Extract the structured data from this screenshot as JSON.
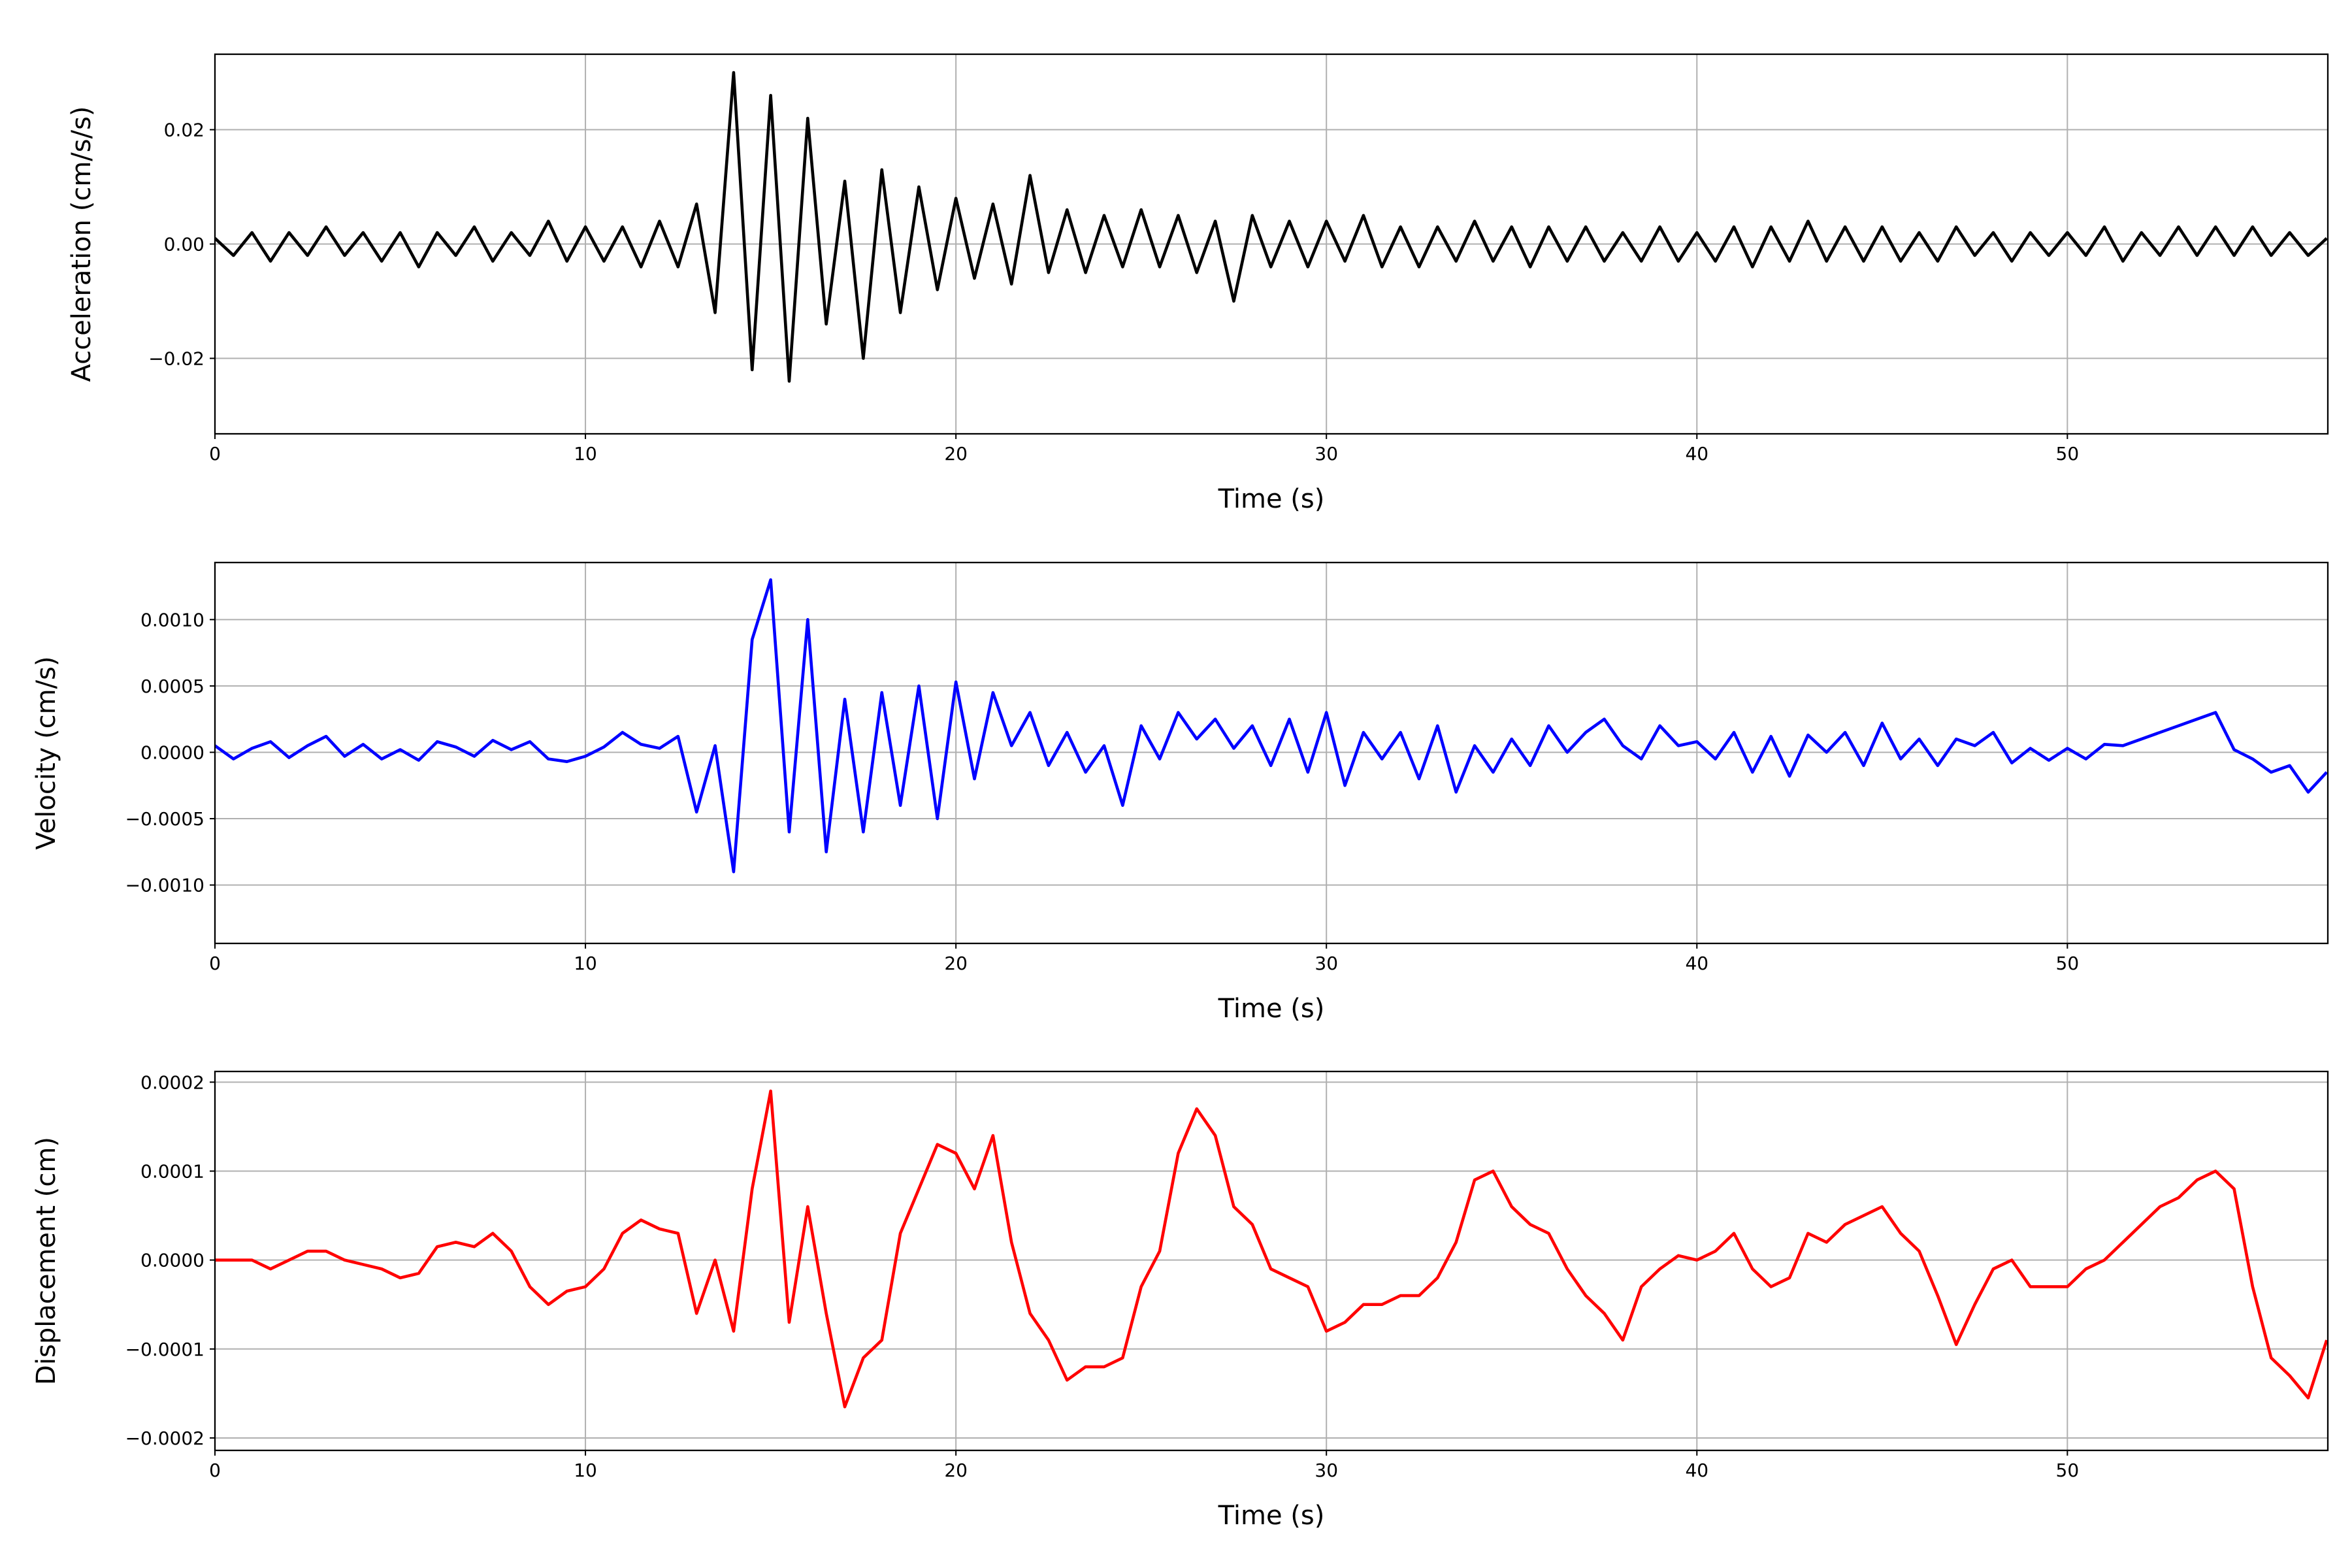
{
  "chart_data": [
    {
      "type": "line",
      "xlabel": "Time (s)",
      "ylabel": "Acceleration (cm/s/s)",
      "color": "#000000",
      "grid": true,
      "xlim": [
        0,
        57.03
      ],
      "xticks": [
        0,
        10,
        20,
        30,
        40,
        50
      ],
      "ylim": [
        -0.0332,
        0.0332
      ],
      "yticks": [
        {
          "value": -0.02,
          "label": "−0.02"
        },
        {
          "value": 0,
          "label": "0.00"
        },
        {
          "value": 0.02,
          "label": "0.02"
        }
      ],
      "x": [
        0,
        0.5,
        1,
        1.5,
        2,
        2.5,
        3,
        3.5,
        4,
        4.5,
        5,
        5.5,
        6,
        6.5,
        7,
        7.5,
        8,
        8.5,
        9,
        9.5,
        10,
        10.5,
        11,
        11.5,
        12,
        12.5,
        13,
        13.5,
        14,
        14.5,
        15,
        15.5,
        16,
        16.5,
        17,
        17.5,
        18,
        18.5,
        19,
        19.5,
        20,
        20.5,
        21,
        21.5,
        22,
        22.5,
        23,
        23.5,
        24,
        24.5,
        25,
        25.5,
        26,
        26.5,
        27,
        27.5,
        28,
        28.5,
        29,
        29.5,
        30,
        30.5,
        31,
        31.5,
        32,
        32.5,
        33,
        33.5,
        34,
        34.5,
        35,
        35.5,
        36,
        36.5,
        37,
        37.5,
        38,
        38.5,
        39,
        39.5,
        40,
        40.5,
        41,
        41.5,
        42,
        42.5,
        43,
        43.5,
        44,
        44.5,
        45,
        45.5,
        46,
        46.5,
        47,
        47.5,
        48,
        48.5,
        49,
        49.5,
        50,
        50.5,
        51,
        51.5,
        52,
        52.5,
        53,
        53.5,
        54,
        54.5,
        55,
        55.5,
        56,
        56.5,
        57
      ],
      "values": [
        0.001,
        -0.002,
        0.002,
        -0.003,
        0.002,
        -0.002,
        0.003,
        -0.002,
        0.002,
        -0.003,
        0.002,
        -0.004,
        0.002,
        -0.002,
        0.003,
        -0.003,
        0.002,
        -0.002,
        0.004,
        -0.003,
        0.003,
        -0.003,
        0.003,
        -0.004,
        0.004,
        -0.004,
        0.007,
        -0.012,
        0.03,
        -0.022,
        0.026,
        -0.024,
        0.022,
        -0.014,
        0.011,
        -0.02,
        0.013,
        -0.012,
        0.01,
        -0.008,
        0.008,
        -0.006,
        0.007,
        -0.007,
        0.012,
        -0.005,
        0.006,
        -0.005,
        0.005,
        -0.004,
        0.006,
        -0.004,
        0.005,
        -0.005,
        0.004,
        -0.01,
        0.005,
        -0.004,
        0.004,
        -0.004,
        0.004,
        -0.003,
        0.005,
        -0.004,
        0.003,
        -0.004,
        0.003,
        -0.003,
        0.004,
        -0.003,
        0.003,
        -0.004,
        0.003,
        -0.003,
        0.003,
        -0.003,
        0.002,
        -0.003,
        0.003,
        -0.003,
        0.002,
        -0.003,
        0.003,
        -0.004,
        0.003,
        -0.003,
        0.004,
        -0.003,
        0.003,
        -0.003,
        0.003,
        -0.003,
        0.002,
        -0.003,
        0.003,
        -0.002,
        0.002,
        -0.003,
        0.002,
        -0.002,
        0.002,
        -0.002,
        0.003,
        -0.003,
        0.002,
        -0.002,
        0.003,
        -0.002,
        0.003,
        -0.002,
        0.003,
        -0.002,
        0.002,
        -0.002,
        0.001
      ]
    },
    {
      "type": "line",
      "xlabel": "Time (s)",
      "ylabel": "Velocity (cm/s)",
      "color": "#0000ff",
      "grid": true,
      "xlim": [
        0,
        57.03
      ],
      "xticks": [
        0,
        10,
        20,
        30,
        40,
        50
      ],
      "ylim": [
        -0.00144,
        0.00143
      ],
      "yticks": [
        {
          "value": -0.001,
          "label": "−0.0010"
        },
        {
          "value": -0.0005,
          "label": "−0.0005"
        },
        {
          "value": 0,
          "label": "0.0000"
        },
        {
          "value": 0.0005,
          "label": "0.0005"
        },
        {
          "value": 0.001,
          "label": "0.0010"
        }
      ],
      "x": [
        0,
        0.5,
        1,
        1.5,
        2,
        2.5,
        3,
        3.5,
        4,
        4.5,
        5,
        5.5,
        6,
        6.5,
        7,
        7.5,
        8,
        8.5,
        9,
        9.5,
        10,
        10.5,
        11,
        11.5,
        12,
        12.5,
        13,
        13.5,
        14,
        14.5,
        15,
        15.5,
        16,
        16.5,
        17,
        17.5,
        18,
        18.5,
        19,
        19.5,
        20,
        20.5,
        21,
        21.5,
        22,
        22.5,
        23,
        23.5,
        24,
        24.5,
        25,
        25.5,
        26,
        26.5,
        27,
        27.5,
        28,
        28.5,
        29,
        29.5,
        30,
        30.5,
        31,
        31.5,
        32,
        32.5,
        33,
        33.5,
        34,
        34.5,
        35,
        35.5,
        36,
        36.5,
        37,
        37.5,
        38,
        38.5,
        39,
        39.5,
        40,
        40.5,
        41,
        41.5,
        42,
        42.5,
        43,
        43.5,
        44,
        44.5,
        45,
        45.5,
        46,
        46.5,
        47,
        47.5,
        48,
        48.5,
        49,
        49.5,
        50,
        50.5,
        51,
        51.5,
        52,
        52.5,
        53,
        53.5,
        54,
        54.5,
        55,
        55.5,
        56,
        56.5,
        57
      ],
      "values": [
        5e-05,
        -5e-05,
        3e-05,
        8e-05,
        -4e-05,
        5e-05,
        0.00012,
        -3e-05,
        6e-05,
        -5e-05,
        2e-05,
        -6e-05,
        8e-05,
        4e-05,
        -3e-05,
        9e-05,
        2e-05,
        8e-05,
        -5e-05,
        -7e-05,
        -3e-05,
        4e-05,
        0.00015,
        6e-05,
        3e-05,
        0.00012,
        -0.00045,
        5e-05,
        -0.0009,
        0.00085,
        0.0013,
        -0.0006,
        0.001,
        -0.00075,
        0.0004,
        -0.0006,
        0.00045,
        -0.0004,
        0.0005,
        -0.0005,
        0.00053,
        -0.0002,
        0.00045,
        5e-05,
        0.0003,
        -0.0001,
        0.00015,
        -0.00015,
        5e-05,
        -0.0004,
        0.0002,
        -5e-05,
        0.0003,
        0.0001,
        0.00025,
        3e-05,
        0.0002,
        -0.0001,
        0.00025,
        -0.00015,
        0.0003,
        -0.00025,
        0.00015,
        -5e-05,
        0.00015,
        -0.0002,
        0.0002,
        -0.0003,
        5e-05,
        -0.00015,
        0.0001,
        -0.0001,
        0.0002,
        0,
        0.00015,
        0.00025,
        5e-05,
        -5e-05,
        0.0002,
        5e-05,
        8e-05,
        -5e-05,
        0.00015,
        -0.00015,
        0.00012,
        -0.00018,
        0.00013,
        0,
        0.00015,
        -0.0001,
        0.00022,
        -5e-05,
        0.0001,
        -0.0001,
        0.0001,
        5e-05,
        0.00015,
        -8e-05,
        3e-05,
        -6e-05,
        3e-05,
        -5e-05,
        6e-05,
        5e-05,
        0.0001,
        0.00015,
        0.0002,
        0.00025,
        0.0003,
        2e-05,
        -5e-05,
        -0.00015,
        -0.0001,
        -0.0003,
        -0.00015
      ]
    },
    {
      "type": "line",
      "xlabel": "Time (s)",
      "ylabel": "Displacement (cm)",
      "color": "#ff0000",
      "grid": true,
      "xlim": [
        0,
        57.03
      ],
      "xticks": [
        0,
        10,
        20,
        30,
        40,
        50
      ],
      "ylim": [
        -0.000214,
        0.000212
      ],
      "yticks": [
        {
          "value": -0.0002,
          "label": "−0.0002"
        },
        {
          "value": -0.0001,
          "label": "−0.0001"
        },
        {
          "value": 0,
          "label": "0.0000"
        },
        {
          "value": 0.0001,
          "label": "0.0001"
        },
        {
          "value": 0.0002,
          "label": "0.0002"
        }
      ],
      "x": [
        0,
        0.5,
        1,
        1.5,
        2,
        2.5,
        3,
        3.5,
        4,
        4.5,
        5,
        5.5,
        6,
        6.5,
        7,
        7.5,
        8,
        8.5,
        9,
        9.5,
        10,
        10.5,
        11,
        11.5,
        12,
        12.5,
        13,
        13.5,
        14,
        14.5,
        15,
        15.5,
        16,
        16.5,
        17,
        17.5,
        18,
        18.5,
        19,
        19.5,
        20,
        20.5,
        21,
        21.5,
        22,
        22.5,
        23,
        23.5,
        24,
        24.5,
        25,
        25.5,
        26,
        26.5,
        27,
        27.5,
        28,
        28.5,
        29,
        29.5,
        30,
        30.5,
        31,
        31.5,
        32,
        32.5,
        33,
        33.5,
        34,
        34.5,
        35,
        35.5,
        36,
        36.5,
        37,
        37.5,
        38,
        38.5,
        39,
        39.5,
        40,
        40.5,
        41,
        41.5,
        42,
        42.5,
        43,
        43.5,
        44,
        44.5,
        45,
        45.5,
        46,
        46.5,
        47,
        47.5,
        48,
        48.5,
        49,
        49.5,
        50,
        50.5,
        51,
        51.5,
        52,
        52.5,
        53,
        53.5,
        54,
        54.5,
        55,
        55.5,
        56,
        56.5,
        57
      ],
      "values": [
        0,
        0,
        0,
        -1e-05,
        0,
        1e-05,
        1e-05,
        0,
        -5e-06,
        -1e-05,
        -2e-05,
        -1.5e-05,
        1.5e-05,
        2e-05,
        1.5e-05,
        3e-05,
        1e-05,
        -3e-05,
        -5e-05,
        -3.5e-05,
        -3e-05,
        -1e-05,
        3e-05,
        4.5e-05,
        3.5e-05,
        3e-05,
        -6e-05,
        0,
        -8e-05,
        8e-05,
        0.00019,
        -7e-05,
        6e-05,
        -6e-05,
        -0.000165,
        -0.00011,
        -9e-05,
        3e-05,
        8e-05,
        0.00013,
        0.00012,
        8e-05,
        0.00014,
        2e-05,
        -6e-05,
        -9e-05,
        -0.000135,
        -0.00012,
        -0.00012,
        -0.00011,
        -3e-05,
        1e-05,
        0.00012,
        0.00017,
        0.00014,
        6e-05,
        4e-05,
        -1e-05,
        -2e-05,
        -3e-05,
        -8e-05,
        -7e-05,
        -5e-05,
        -5e-05,
        -4e-05,
        -4e-05,
        -2e-05,
        2e-05,
        9e-05,
        0.0001,
        6e-05,
        4e-05,
        3e-05,
        -1e-05,
        -4e-05,
        -6e-05,
        -9e-05,
        -3e-05,
        -1e-05,
        5e-06,
        0,
        1e-05,
        3e-05,
        -1e-05,
        -3e-05,
        -2e-05,
        3e-05,
        2e-05,
        4e-05,
        5e-05,
        6e-05,
        3e-05,
        1e-05,
        -4e-05,
        -9.5e-05,
        -5e-05,
        -1e-05,
        0,
        -3e-05,
        -3e-05,
        -3e-05,
        -1e-05,
        0,
        2e-05,
        4e-05,
        6e-05,
        7e-05,
        9e-05,
        0.0001,
        8e-05,
        -3e-05,
        -0.00011,
        -0.00013,
        -0.000155,
        -9e-05
      ]
    }
  ]
}
